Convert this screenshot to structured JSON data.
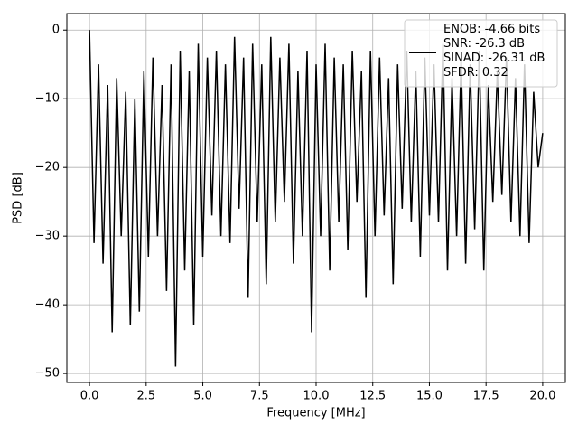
{
  "chart_data": {
    "type": "line",
    "xlabel": "Frequency [MHz]",
    "ylabel": "PSD [dB]",
    "x": [
      0,
      0.2,
      0.4,
      0.6,
      0.8,
      1.0,
      1.2,
      1.4,
      1.6,
      1.8,
      2.0,
      2.2,
      2.4,
      2.6,
      2.8,
      3.0,
      3.2,
      3.4,
      3.6,
      3.8,
      4.0,
      4.2,
      4.4,
      4.6,
      4.8,
      5.0,
      5.2,
      5.4,
      5.6,
      5.8,
      6.0,
      6.2,
      6.4,
      6.6,
      6.8,
      7.0,
      7.2,
      7.4,
      7.6,
      7.8,
      8.0,
      8.2,
      8.4,
      8.6,
      8.8,
      9.0,
      9.2,
      9.4,
      9.6,
      9.8,
      10.0,
      10.2,
      10.4,
      10.6,
      10.8,
      11.0,
      11.2,
      11.4,
      11.6,
      11.8,
      12.0,
      12.2,
      12.4,
      12.6,
      12.8,
      13.0,
      13.2,
      13.4,
      13.6,
      13.8,
      14.0,
      14.2,
      14.4,
      14.6,
      14.8,
      15.0,
      15.2,
      15.4,
      15.6,
      15.8,
      16.0,
      16.2,
      16.4,
      16.6,
      16.8,
      17.0,
      17.2,
      17.4,
      17.6,
      17.8,
      18.0,
      18.2,
      18.4,
      18.6,
      18.8,
      19.0,
      19.2,
      19.4,
      19.6,
      19.8,
      20.0
    ],
    "series": [
      {
        "name": "ENOB: -4.66 bits\nSNR: -26.3 dB\nSINAD: -26.31 dB\nSFDR: 0.32",
        "color": "#000000",
        "values": [
          0,
          -31,
          -5,
          -34,
          -8,
          -44,
          -7,
          -30,
          -9,
          -43,
          -10,
          -41,
          -6,
          -33,
          -4,
          -30,
          -8,
          -38,
          -5,
          -49,
          -3,
          -35,
          -6,
          -43,
          -2,
          -33,
          -4,
          -27,
          -3,
          -30,
          -5,
          -31,
          -1,
          -26,
          -4,
          -39,
          -2,
          -28,
          -5,
          -37,
          -1,
          -28,
          -4,
          -25,
          -2,
          -34,
          -6,
          -30,
          -3,
          -44,
          -5,
          -30,
          -2,
          -35,
          -4,
          -28,
          -5,
          -32,
          -3,
          -25,
          -6,
          -39,
          -3,
          -30,
          -4,
          -27,
          -7,
          -37,
          -5,
          -26,
          -3,
          -28,
          -6,
          -33,
          -4,
          -27,
          -5,
          -28,
          -2,
          -35,
          -7,
          -30,
          -4,
          -34,
          -5,
          -29,
          -3,
          -35,
          -8,
          -25,
          -6,
          -24,
          -4,
          -28,
          -7,
          -30,
          -5,
          -31,
          -9,
          -20,
          -15
        ]
      }
    ],
    "xlim": [
      -1,
      21
    ],
    "ylim": [
      -51.3,
      2.4
    ],
    "xticks": [
      {
        "value": 0,
        "label": "0.0"
      },
      2.5,
      {
        "value": 5,
        "label": "5.0"
      },
      7.5,
      {
        "value": 10,
        "label": "10.0"
      },
      12.5,
      {
        "value": 15,
        "label": "15.0"
      },
      17.5,
      {
        "value": 20,
        "label": "20.0"
      }
    ],
    "yticks": [
      0,
      {
        "value": -10,
        "label": "−10"
      },
      {
        "value": -20,
        "label": "−20"
      },
      {
        "value": -30,
        "label": "−30"
      },
      {
        "value": -40,
        "label": "−40"
      },
      {
        "value": -50,
        "label": "−50"
      }
    ],
    "grid": true,
    "legend": "upper right"
  }
}
